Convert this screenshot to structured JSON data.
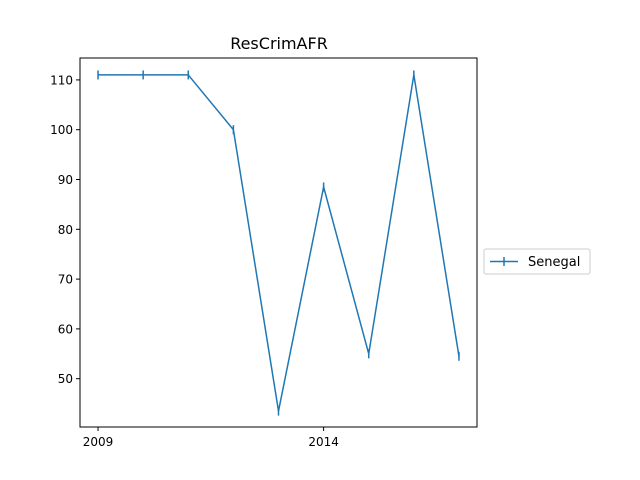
{
  "chart_data": {
    "type": "line",
    "title": "ResCrimAFR",
    "xlabel": "",
    "ylabel": "",
    "x": [
      2009,
      2010,
      2011,
      2012,
      2013,
      2014,
      2015,
      2016,
      2017
    ],
    "series": [
      {
        "name": "Senegal",
        "values": [
          111,
          111,
          111,
          100,
          43.5,
          88.5,
          55,
          111,
          54.5
        ],
        "color": "#1f77b4",
        "marker": "|"
      }
    ],
    "xticks": [
      2009,
      2014
    ],
    "yticks": [
      50,
      60,
      70,
      80,
      90,
      100,
      110
    ],
    "xlim": [
      2008.6,
      2017.4
    ],
    "ylim": [
      40.3,
      114.4
    ],
    "grid": false,
    "legend": "right"
  }
}
